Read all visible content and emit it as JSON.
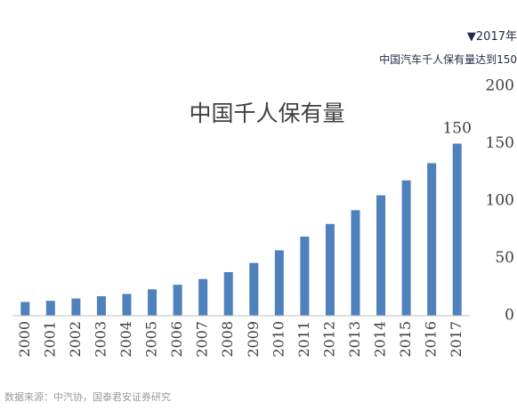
{
  "header": {
    "tag_line": "▼2017年",
    "sub_line": "中国汽车千人保有量达到150"
  },
  "source_note": "数据来源：中汽协，国泰君安证券研究",
  "colors": {
    "bar": "#4f81bd",
    "axis": "#bfbfbf",
    "text": "#404040"
  },
  "chart_data": {
    "type": "bar",
    "title": "中国千人保有量",
    "categories": [
      "2000",
      "2001",
      "2002",
      "2003",
      "2004",
      "2005",
      "2006",
      "2007",
      "2008",
      "2009",
      "2010",
      "2011",
      "2012",
      "2013",
      "2014",
      "2015",
      "2016",
      "2017"
    ],
    "values": [
      12,
      13,
      15,
      17,
      19,
      23,
      27,
      32,
      38,
      46,
      57,
      69,
      80,
      92,
      105,
      118,
      133,
      150
    ],
    "data_labels": [
      {
        "category": "2017",
        "text": "150"
      }
    ],
    "yticks": [
      0,
      50,
      100,
      150,
      200
    ],
    "ylim": [
      0,
      200
    ],
    "y_axis_side": "right",
    "xlabel": "",
    "ylabel": "",
    "grid": false,
    "legend": "none"
  }
}
